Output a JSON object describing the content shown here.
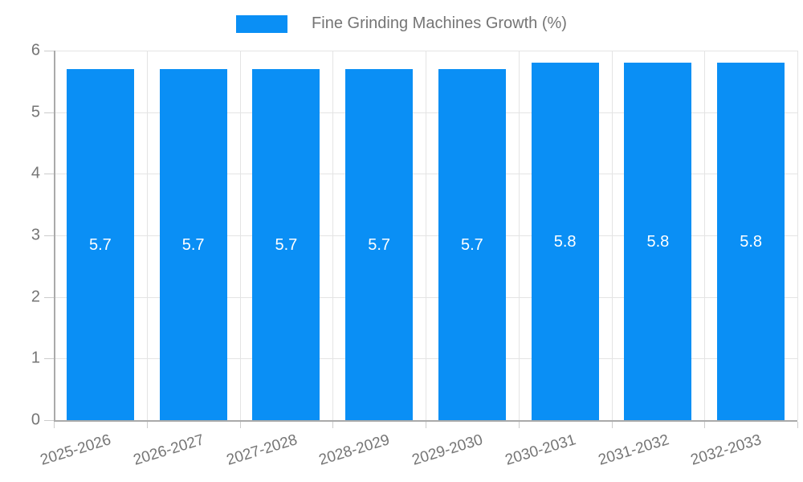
{
  "chart_data": {
    "type": "bar",
    "title": "Fine Grinding Machines Growth (%)",
    "categories": [
      "2025-2026",
      "2026-2027",
      "2027-2028",
      "2028-2029",
      "2029-2030",
      "2030-2031",
      "2031-2032",
      "2032-2033"
    ],
    "values": [
      5.7,
      5.7,
      5.7,
      5.7,
      5.7,
      5.8,
      5.8,
      5.8
    ],
    "bar_labels": [
      "5.7",
      "5.7",
      "5.7",
      "5.7",
      "5.7",
      "5.8",
      "5.8",
      "5.8"
    ],
    "xlabel": "",
    "ylabel": "",
    "ylim": [
      0,
      6
    ],
    "y_ticks": [
      0,
      1,
      2,
      3,
      4,
      5,
      6
    ],
    "grid": true,
    "legend_position": "top",
    "x_label_rotation_deg": -17,
    "colors": {
      "bar": "#0a8ff5",
      "bar_value_label": "#ffffff",
      "axis_text": "#757575",
      "legend_text": "#757575",
      "gridline": "#e4e4e4",
      "axis_line": "#aaaaaa",
      "tick_mark": "#cccccc",
      "background": "#ffffff"
    }
  }
}
